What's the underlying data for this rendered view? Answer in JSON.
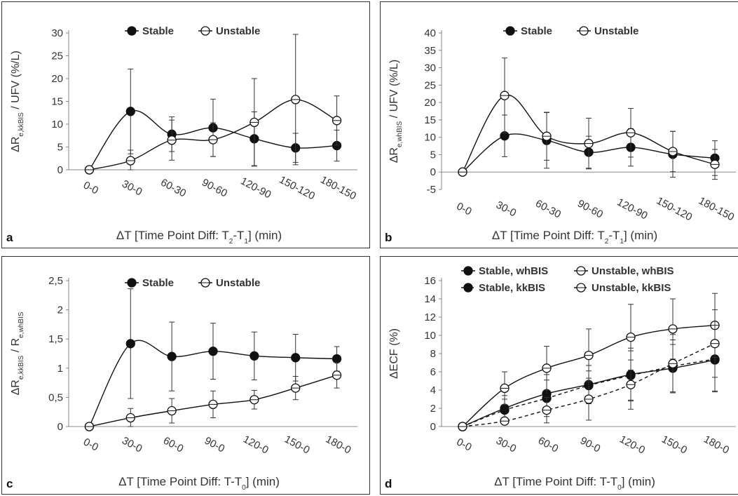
{
  "chart_data": [
    {
      "panel": "a",
      "type": "line",
      "ylabel": "ΔR_e,kkBIS / UFV (%/L)",
      "xlabel": "ΔT [Time Point Diff: T2-T1] (min)",
      "categories": [
        "0-0",
        "30-0",
        "60-30",
        "90-60",
        "120-90",
        "150-120",
        "180-150"
      ],
      "ylim": [
        0,
        30
      ],
      "yticks": [
        "0",
        "5",
        "10",
        "15",
        "20",
        "25",
        "30"
      ],
      "legend_position": "top",
      "series": [
        {
          "name": "Stable",
          "marker": "filled",
          "dashed": false,
          "values": [
            0,
            12.8,
            7.8,
            9.2,
            6.8,
            4.8,
            5.3
          ],
          "errors": [
            0,
            9.3,
            3.8,
            6.3,
            5.9,
            3.2,
            3.4
          ]
        },
        {
          "name": "Unstable",
          "marker": "open",
          "dashed": false,
          "values": [
            0,
            2.0,
            6.5,
            6.6,
            10.4,
            15.4,
            10.8
          ],
          "errors": [
            0,
            2.3,
            4.4,
            3.7,
            9.6,
            14.3,
            5.4
          ]
        }
      ]
    },
    {
      "panel": "b",
      "type": "line",
      "ylabel": "ΔR_e,whBIS / UFV (%/L)",
      "xlabel": "ΔT [Time Point Diff: T2-T1] (min)",
      "categories": [
        "0-0",
        "30-0",
        "60-30",
        "90-60",
        "120-90",
        "150-120",
        "180-150"
      ],
      "ylim": [
        -5,
        40
      ],
      "yticks": [
        "-5",
        "0",
        "5",
        "10",
        "15",
        "20",
        "25",
        "30",
        "35",
        "40"
      ],
      "legend_position": "top",
      "series": [
        {
          "name": "Stable",
          "marker": "filled",
          "dashed": false,
          "values": [
            0,
            10.4,
            9.1,
            5.7,
            7.1,
            5.1,
            4.0
          ],
          "errors": [
            0,
            6.0,
            8.0,
            4.6,
            5.4,
            6.6,
            5.0
          ]
        },
        {
          "name": "Unstable",
          "marker": "open",
          "dashed": false,
          "values": [
            0,
            22.0,
            10.3,
            8.2,
            11.3,
            5.9,
            2.2
          ],
          "errors": [
            0,
            10.8,
            6.9,
            7.3,
            7.0,
            5.8,
            4.3
          ]
        }
      ]
    },
    {
      "panel": "c",
      "type": "line",
      "ylabel": "ΔR_e,kkBIS / R_e,whBIS",
      "xlabel": "ΔT [Time Point Diff: T-T0] (min)",
      "categories": [
        "0-0",
        "30-0",
        "60-0",
        "90-0",
        "120-0",
        "150-0",
        "180-0"
      ],
      "ylim": [
        0,
        2.5
      ],
      "yticks": [
        "0",
        "0,5",
        "1",
        "1,5",
        "2",
        "2,5"
      ],
      "legend_position": "top",
      "series": [
        {
          "name": "Stable",
          "marker": "filled",
          "dashed": false,
          "values": [
            0,
            1.42,
            1.2,
            1.29,
            1.21,
            1.18,
            1.16
          ],
          "errors": [
            0,
            0.94,
            0.59,
            0.48,
            0.41,
            0.4,
            0.21
          ]
        },
        {
          "name": "Unstable",
          "marker": "open",
          "dashed": false,
          "values": [
            0,
            0.15,
            0.27,
            0.38,
            0.46,
            0.66,
            0.88
          ],
          "errors": [
            0,
            0.16,
            0.21,
            0.23,
            0.16,
            0.2,
            0.22
          ]
        }
      ]
    },
    {
      "panel": "d",
      "type": "line",
      "ylabel": "ΔECF (%)",
      "xlabel": "ΔT [Time Point Diff: T-T0] (min)",
      "categories": [
        "0-0",
        "30-0",
        "60-0",
        "90-0",
        "120-0",
        "150-0",
        "180-0"
      ],
      "ylim": [
        0,
        16
      ],
      "yticks": [
        "0",
        "2",
        "4",
        "6",
        "8",
        "10",
        "12",
        "14",
        "16"
      ],
      "legend_position": "top",
      "series": [
        {
          "name": "Stable, whBIS",
          "marker": "filled",
          "dashed": false,
          "values": [
            0,
            2.0,
            3.6,
            4.6,
            5.7,
            6.4,
            7.3
          ],
          "errors": [
            0,
            1.4,
            2.1,
            2.1,
            2.9,
            2.6,
            3.4
          ]
        },
        {
          "name": "Stable, kkBIS",
          "marker": "filled",
          "dashed": true,
          "values": [
            0,
            1.8,
            3.1,
            4.5,
            5.6,
            6.6,
            7.4
          ],
          "errors": [
            0,
            1.2,
            2.0,
            1.6,
            2.7,
            2.9,
            3.6
          ]
        },
        {
          "name": "Unstable, whBIS",
          "marker": "open",
          "dashed": false,
          "values": [
            0,
            4.2,
            6.4,
            7.8,
            9.8,
            10.7,
            11.1
          ],
          "errors": [
            0,
            1.8,
            2.4,
            2.9,
            3.6,
            3.3,
            3.5
          ]
        },
        {
          "name": "Unstable, kkBIS",
          "marker": "open",
          "dashed": true,
          "values": [
            0,
            0.6,
            1.8,
            3.0,
            4.6,
            6.9,
            9.1
          ],
          "errors": [
            0,
            0.4,
            1.4,
            2.3,
            2.7,
            3.2,
            3.7
          ]
        }
      ]
    }
  ],
  "panels": {
    "a": {
      "letter": "a",
      "ylabel_pre": "ΔR",
      "ylabel_sub": "e,kkBIS",
      "ylabel_post": " / UFV (%/L)",
      "xlabel_pre": "ΔT [Time Point Diff: T",
      "xlabel_sub1": "2",
      "xlabel_mid": "-T",
      "xlabel_sub2": "1",
      "xlabel_post": "] (min)"
    },
    "b": {
      "letter": "b",
      "ylabel_pre": "ΔR",
      "ylabel_sub": "e,whBIS",
      "ylabel_post": " / UFV (%/L)",
      "xlabel_pre": "ΔT [Time Point Diff: T",
      "xlabel_sub1": "2",
      "xlabel_mid": "-T",
      "xlabel_sub2": "1",
      "xlabel_post": "] (min)"
    },
    "c": {
      "letter": "c",
      "ylabel_pre": "ΔR",
      "ylabel_sub": "e,kkBIS",
      "ylabel_mid": " / R",
      "ylabel_sub2": "e,whBIS",
      "xlabel_pre": "ΔT [Time Point Diff: T-T",
      "xlabel_sub1": "0",
      "xlabel_post": "] (min)"
    },
    "d": {
      "letter": "d",
      "ylabel_pre": "ΔECF (%)",
      "xlabel_pre": "ΔT [Time Point Diff: T-T",
      "xlabel_sub1": "0",
      "xlabel_post": "] (min)"
    }
  }
}
